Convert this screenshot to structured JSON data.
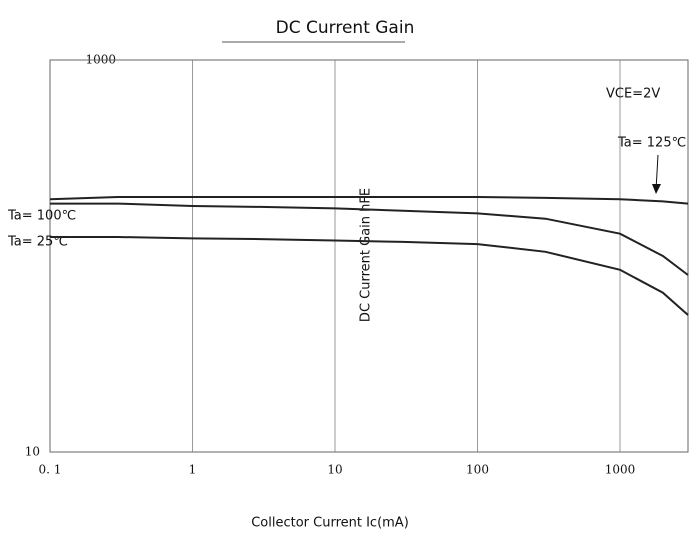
{
  "chart_data": {
    "type": "line",
    "title": "DC Current Gain",
    "x_label": "Collector Current   Ic(mA)",
    "y_label": "DC Current Gain hFE",
    "annotations": [
      "VCE=2V",
      "Ta= 125℃",
      "Ta= 100℃",
      "Ta= 25℃"
    ],
    "log_x": true,
    "log_y": true,
    "grid": true,
    "x": [
      0.1,
      0.3,
      1,
      3,
      10,
      30,
      100,
      300,
      1000,
      2000,
      3000
    ],
    "series": [
      {
        "name": "Ta= 125℃",
        "color": "#222222",
        "values": [
          195,
          200,
          200,
          200,
          200,
          200,
          200,
          198,
          195,
          190,
          185
        ]
      },
      {
        "name": "Ta= 100℃",
        "color": "#222222",
        "values": [
          185,
          185,
          180,
          178,
          175,
          170,
          165,
          155,
          130,
          100,
          80
        ]
      },
      {
        "name": "Ta= 25℃",
        "color": "#222222",
        "values": [
          125,
          125,
          123,
          122,
          120,
          118,
          115,
          105,
          85,
          65,
          50
        ]
      }
    ],
    "xlim": [
      0.1,
      3000
    ],
    "ylim": [
      10,
      1000
    ],
    "xticks": [
      {
        "value": 0.1,
        "label": "0. 1"
      },
      1,
      10,
      100,
      1000
    ],
    "yticks": [
      10,
      1000
    ]
  }
}
